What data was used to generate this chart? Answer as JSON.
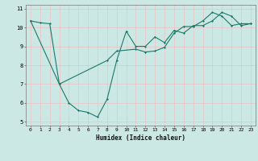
{
  "xlabel": "Humidex (Indice chaleur)",
  "xlim": [
    -0.5,
    23.5
  ],
  "ylim": [
    4.8,
    11.2
  ],
  "yticks": [
    5,
    6,
    7,
    8,
    9,
    10,
    11
  ],
  "xticks": [
    0,
    1,
    2,
    3,
    4,
    5,
    6,
    7,
    8,
    9,
    10,
    11,
    12,
    13,
    14,
    15,
    16,
    17,
    18,
    19,
    20,
    21,
    22,
    23
  ],
  "bg_color": "#cbe8e4",
  "grid_color": "#e8c8c8",
  "line_color": "#1a7a6a",
  "line1_x": [
    0,
    1,
    2,
    3,
    4,
    5,
    6,
    7,
    8,
    9,
    10,
    11,
    12,
    13,
    14,
    15,
    16,
    17,
    18,
    19,
    20,
    21,
    22,
    23
  ],
  "line1_y": [
    10.35,
    10.25,
    10.2,
    7.0,
    6.0,
    5.6,
    5.5,
    5.25,
    6.2,
    8.25,
    9.8,
    9.0,
    9.0,
    9.5,
    9.2,
    9.85,
    9.7,
    10.1,
    10.1,
    10.35,
    10.8,
    10.6,
    10.1,
    10.2
  ],
  "line2_x": [
    0,
    3,
    8,
    9,
    11,
    12,
    13,
    14,
    15,
    16,
    17,
    18,
    19,
    20,
    21,
    22,
    23
  ],
  "line2_y": [
    10.35,
    7.0,
    8.25,
    8.75,
    8.85,
    8.7,
    8.75,
    8.95,
    9.7,
    10.05,
    10.05,
    10.35,
    10.8,
    10.6,
    10.1,
    10.2,
    10.2
  ]
}
